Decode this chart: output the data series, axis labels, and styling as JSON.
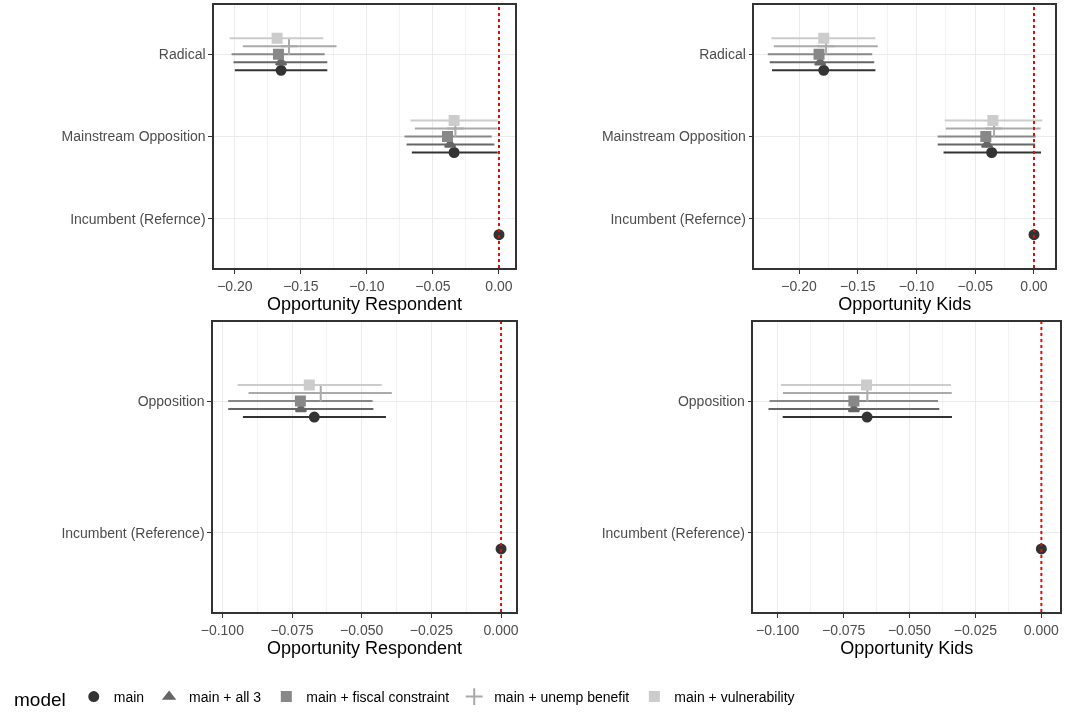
{
  "chart_data": [
    {
      "type": "scatter",
      "orientation": "horizontal",
      "xlabel": "Opportunity Respondent",
      "categories": [
        "Radical",
        "Mainstream Opposition",
        "Incumbent (Refernce)"
      ],
      "xlim": [
        -0.2157,
        0.012
      ],
      "xticks": [
        {
          "value": -0.2,
          "label": "−0.20"
        },
        {
          "value": -0.15,
          "label": "−0.15"
        },
        {
          "value": -0.1,
          "label": "−0.10"
        },
        {
          "value": -0.05,
          "label": "−0.05"
        },
        {
          "value": 0,
          "label": "0.00"
        }
      ],
      "grid": true,
      "legend": "bottom",
      "legend_title": "model",
      "ref_lines": [
        {
          "axis": "x",
          "value": 0,
          "color": "#ff0000",
          "line_style": "dotted"
        }
      ],
      "series": [
        {
          "name": "main",
          "color": "#333333",
          "marker": "circle",
          "values": [
            -0.165,
            -0.034,
            0
          ],
          "errors": [
            [
              -0.2,
              -0.13
            ],
            [
              -0.066,
              -0.001
            ],
            null
          ]
        },
        {
          "name": "main + all 3",
          "color": "#666666",
          "marker": "triangle",
          "values": [
            -0.165,
            -0.037,
            null
          ],
          "errors": [
            [
              -0.201,
              -0.13
            ],
            [
              -0.07,
              -0.0035
            ],
            null
          ]
        },
        {
          "name": "main + fiscal constraint",
          "color": "#888888",
          "marker": "square",
          "values": [
            -0.167,
            -0.039,
            null
          ],
          "errors": [
            [
              -0.2025,
              -0.132
            ],
            [
              -0.0716,
              -0.0055
            ],
            null
          ]
        },
        {
          "name": "main + unemp benefit",
          "color": "#aaaaaa",
          "marker": "cross",
          "values": [
            -0.159,
            -0.033,
            null
          ],
          "errors": [
            [
              -0.194,
              -0.123
            ],
            [
              -0.0637,
              -0.0012
            ],
            null
          ]
        },
        {
          "name": "main + vulnerability",
          "color": "#cccccc",
          "marker": "square",
          "values": [
            -0.168,
            -0.034,
            null
          ],
          "errors": [
            [
              -0.204,
              -0.133
            ],
            [
              -0.067,
              -0.001
            ],
            null
          ]
        }
      ]
    },
    {
      "type": "scatter",
      "orientation": "horizontal",
      "xlabel": "Opportunity Kids",
      "categories": [
        "Radical",
        "Mainstream Opposition",
        "Incumbent (Refernce)"
      ],
      "xlim": [
        -0.238,
        0.018
      ],
      "xticks": [
        {
          "value": -0.2,
          "label": "−0.20"
        },
        {
          "value": -0.15,
          "label": "−0.15"
        },
        {
          "value": -0.1,
          "label": "−0.10"
        },
        {
          "value": -0.05,
          "label": "−0.05"
        },
        {
          "value": 0,
          "label": "0.00"
        }
      ],
      "grid": true,
      "ref_lines": [
        {
          "axis": "x",
          "value": 0,
          "color": "#ff0000",
          "line_style": "dotted"
        }
      ],
      "series": [
        {
          "color": "#333333",
          "marker": "circle",
          "values": [
            -0.179,
            -0.036,
            0
          ],
          "errors": [
            [
              -0.223,
              -0.135
            ],
            [
              -0.077,
              0.006
            ],
            null
          ]
        },
        {
          "color": "#666666",
          "marker": "triangle",
          "values": [
            -0.182,
            -0.04,
            null
          ],
          "errors": [
            [
              -0.225,
              -0.136
            ],
            [
              -0.082,
              0.001
            ],
            null
          ]
        },
        {
          "color": "#888888",
          "marker": "square",
          "values": [
            -0.183,
            -0.041,
            null
          ],
          "errors": [
            [
              -0.2266,
              -0.1377
            ],
            [
              -0.082,
              0.0014
            ],
            null
          ]
        },
        {
          "color": "#aaaaaa",
          "marker": "cross",
          "values": [
            -0.177,
            -0.034,
            null
          ],
          "errors": [
            [
              -0.2215,
              -0.133
            ],
            [
              -0.075,
              0.0056
            ],
            null
          ]
        },
        {
          "color": "#cccccc",
          "marker": "square",
          "values": [
            -0.179,
            -0.035,
            null
          ],
          "errors": [
            [
              -0.2235,
              -0.135
            ],
            [
              -0.076,
              0.007
            ],
            null
          ]
        }
      ]
    },
    {
      "type": "scatter",
      "orientation": "horizontal",
      "xlabel": "Opportunity Respondent",
      "categories": [
        "Opposition",
        "Incumbent (Reference)"
      ],
      "xlim": [
        -0.1033,
        0.0053
      ],
      "xticks": [
        {
          "value": -0.1,
          "label": "−0.100"
        },
        {
          "value": -0.075,
          "label": "−0.075"
        },
        {
          "value": -0.05,
          "label": "−0.050"
        },
        {
          "value": -0.025,
          "label": "−0.025"
        },
        {
          "value": 0,
          "label": "0.000"
        }
      ],
      "grid": true,
      "ref_lines": [
        {
          "axis": "x",
          "value": 0,
          "color": "#ff0000",
          "line_style": "dotted"
        }
      ],
      "series": [
        {
          "color": "#333333",
          "marker": "circle",
          "values": [
            -0.067,
            0
          ],
          "errors": [
            [
              -0.0926,
              -0.0413
            ],
            null
          ]
        },
        {
          "color": "#666666",
          "marker": "triangle",
          "values": [
            -0.0718,
            null
          ],
          "errors": [
            [
              -0.0979,
              -0.0458
            ],
            null
          ]
        },
        {
          "color": "#888888",
          "marker": "square",
          "values": [
            -0.072,
            null
          ],
          "errors": [
            [
              -0.0979,
              -0.0461
            ],
            null
          ]
        },
        {
          "color": "#aaaaaa",
          "marker": "cross",
          "values": [
            -0.0647,
            null
          ],
          "errors": [
            [
              -0.0906,
              -0.0392
            ],
            null
          ]
        },
        {
          "color": "#cccccc",
          "marker": "square",
          "values": [
            -0.0688,
            null
          ],
          "errors": [
            [
              -0.0945,
              -0.0428
            ],
            null
          ]
        }
      ]
    },
    {
      "type": "scatter",
      "orientation": "horizontal",
      "xlabel": "Opportunity Kids",
      "categories": [
        "Opposition",
        "Incumbent (Reference)"
      ],
      "xlim": [
        -0.1092,
        0.0071
      ],
      "xticks": [
        {
          "value": -0.1,
          "label": "−0.100"
        },
        {
          "value": -0.075,
          "label": "−0.075"
        },
        {
          "value": -0.05,
          "label": "−0.050"
        },
        {
          "value": -0.025,
          "label": "−0.025"
        },
        {
          "value": 0,
          "label": "0.000"
        }
      ],
      "grid": true,
      "ref_lines": [
        {
          "axis": "x",
          "value": 0,
          "color": "#ff0000",
          "line_style": "dotted"
        }
      ],
      "series": [
        {
          "color": "#333333",
          "marker": "circle",
          "values": [
            -0.0661,
            0
          ],
          "errors": [
            [
              -0.0981,
              -0.0339
            ],
            null
          ]
        },
        {
          "color": "#666666",
          "marker": "triangle",
          "values": [
            -0.0711,
            null
          ],
          "errors": [
            [
              -0.1035,
              -0.0387
            ],
            null
          ]
        },
        {
          "color": "#888888",
          "marker": "square",
          "values": [
            -0.0711,
            null
          ],
          "errors": [
            [
              -0.1031,
              -0.0392
            ],
            null
          ]
        },
        {
          "color": "#aaaaaa",
          "marker": "cross",
          "values": [
            -0.066,
            null
          ],
          "errors": [
            [
              -0.098,
              -0.034
            ],
            null
          ]
        },
        {
          "color": "#cccccc",
          "marker": "square",
          "values": [
            -0.0663,
            null
          ],
          "errors": [
            [
              -0.0988,
              -0.0343
            ],
            null
          ]
        }
      ]
    }
  ]
}
